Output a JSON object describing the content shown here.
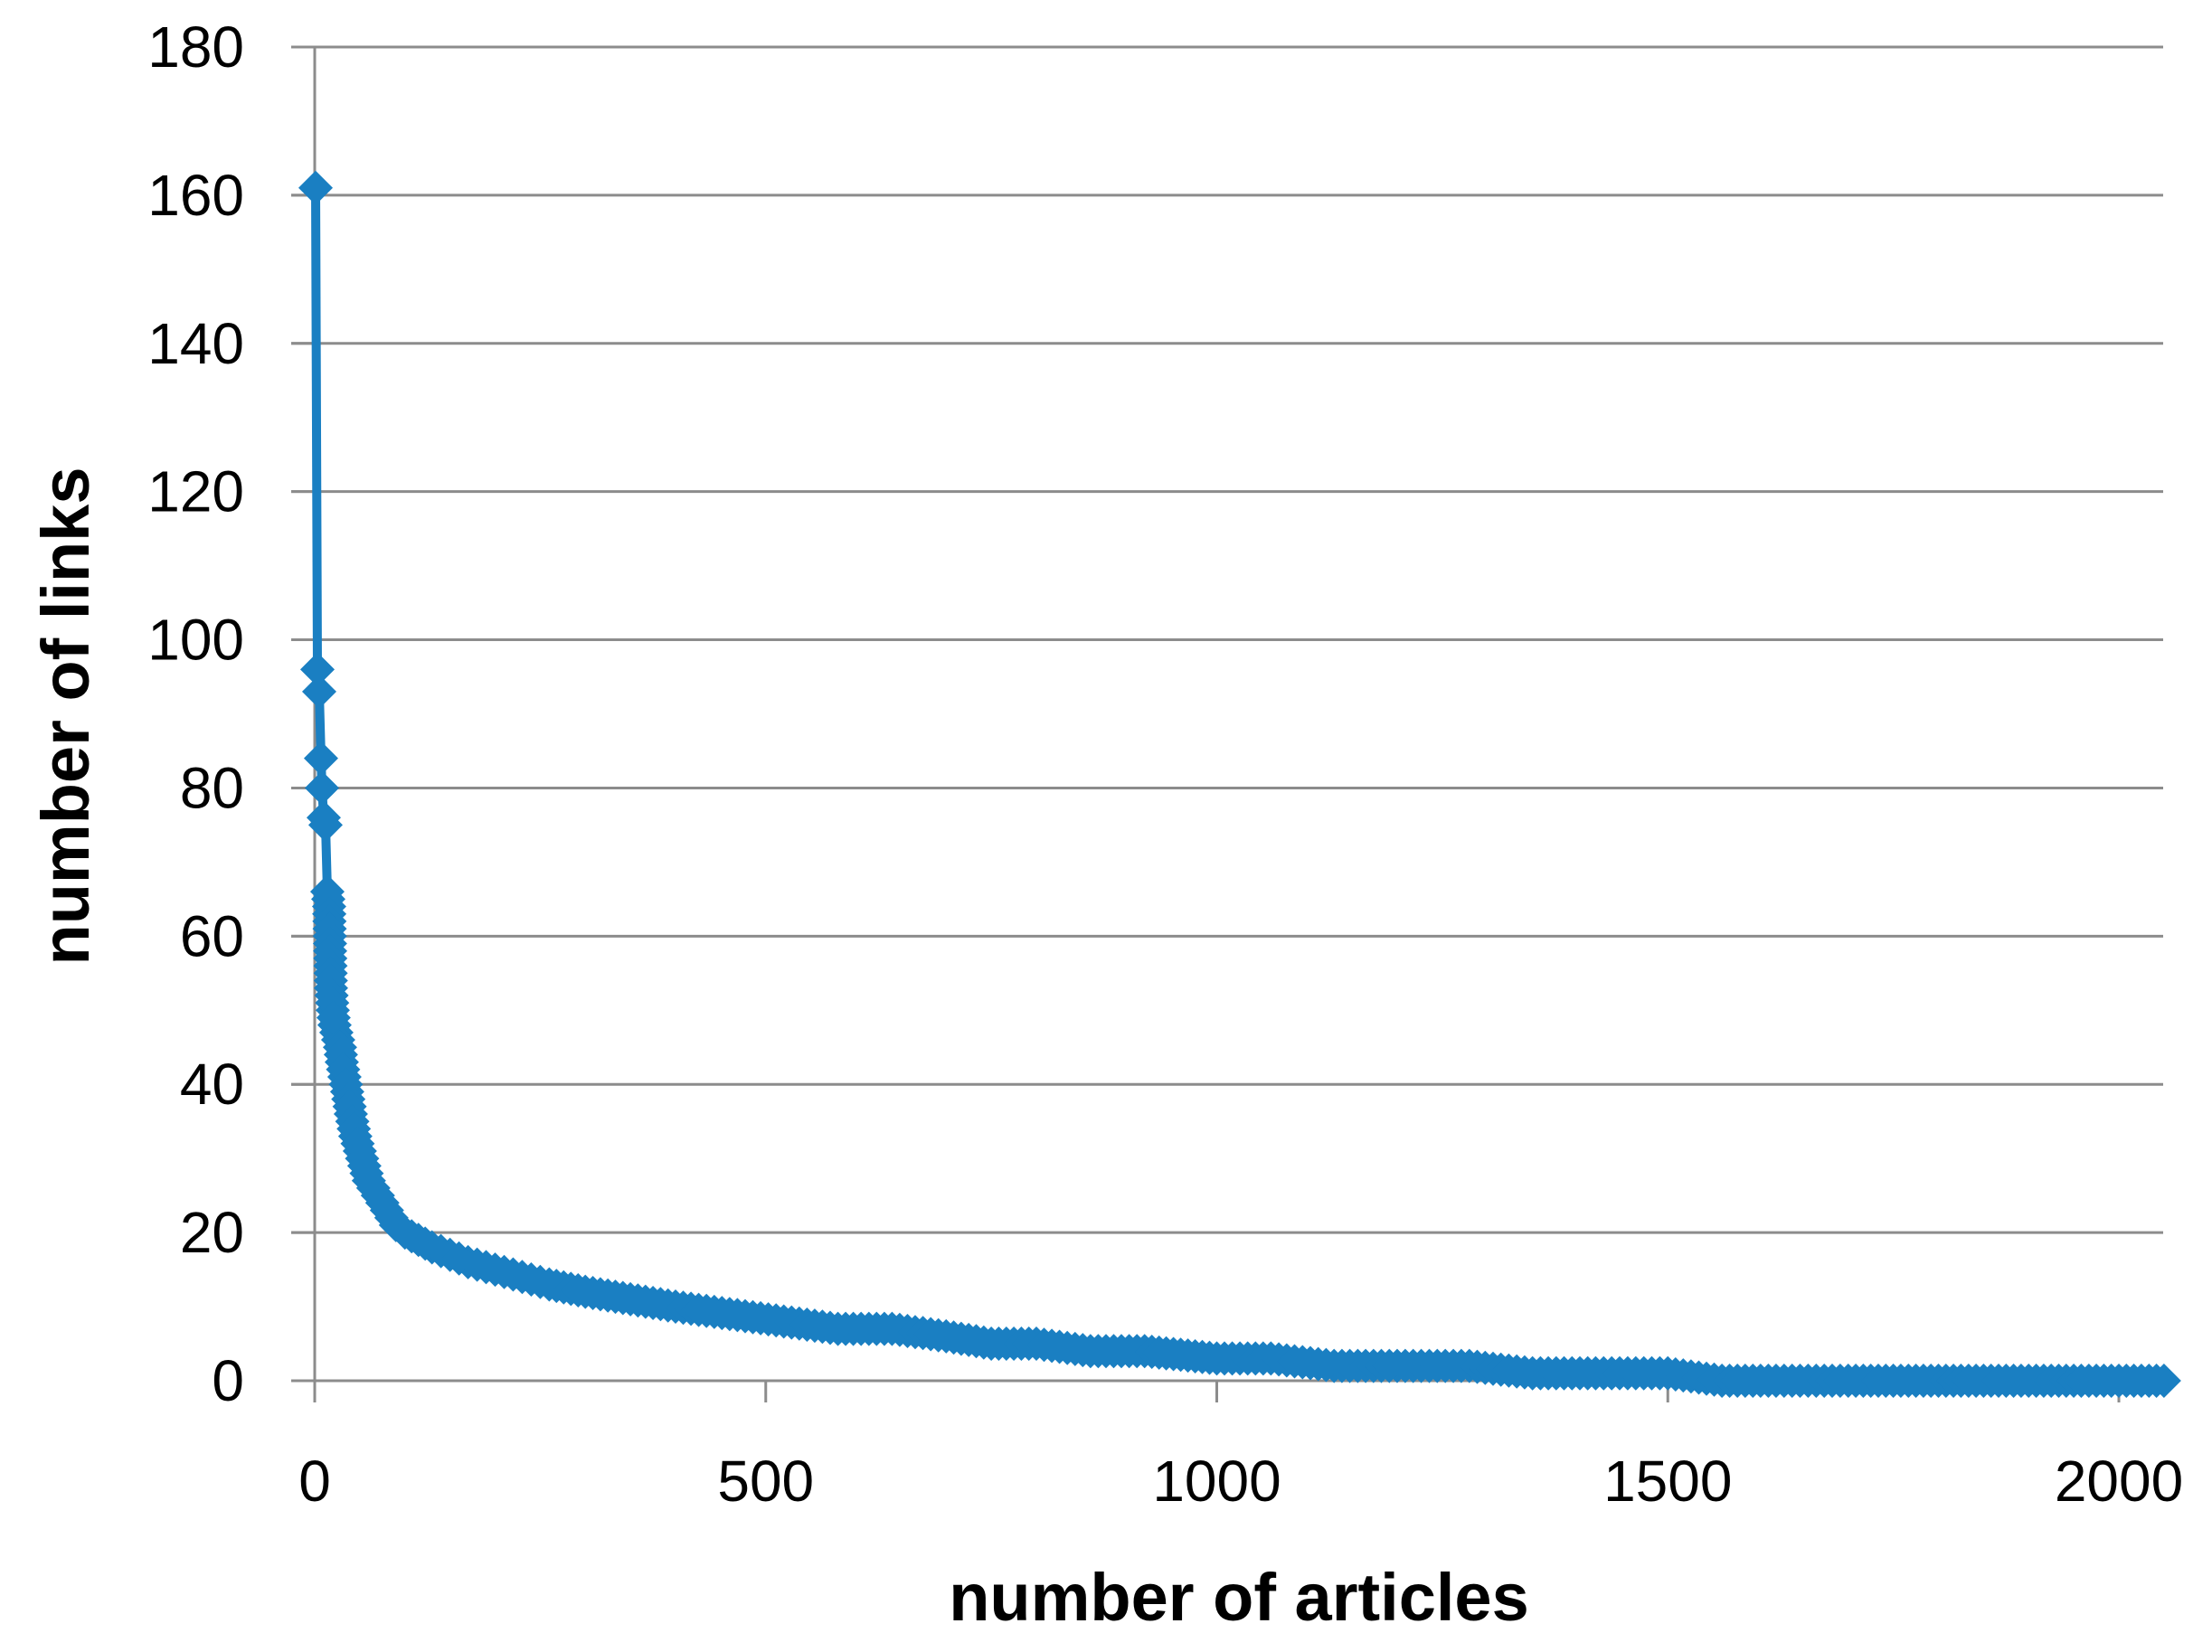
{
  "colors": {
    "series": "#1a7fc2",
    "grid": "#8c8c8c",
    "axis": "#8c8c8c",
    "background": "#ffffff"
  },
  "chart_data": {
    "type": "line",
    "title": "",
    "xlabel": "number of articles",
    "ylabel": "number of links",
    "xlim": [
      0,
      2050
    ],
    "ylim": [
      0,
      180
    ],
    "xticks": [
      0,
      500,
      1000,
      1500,
      2000
    ],
    "yticks": [
      0,
      20,
      40,
      60,
      80,
      100,
      120,
      140,
      160,
      180
    ],
    "grid": "horizontal",
    "legend": "none",
    "marker": "diamond",
    "series": [
      {
        "name": "",
        "x": [
          1,
          3,
          5,
          7,
          8,
          10,
          12,
          14,
          16,
          18,
          20,
          22,
          24,
          26,
          28,
          30,
          33,
          36,
          40,
          45,
          50,
          55,
          60,
          70,
          80,
          90,
          100,
          115,
          130,
          150,
          170,
          200,
          230,
          260,
          300,
          350,
          400,
          460,
          520,
          580,
          640,
          700,
          750,
          800,
          860,
          920,
          1000,
          1060,
          1130,
          1200,
          1280,
          1350,
          1420,
          1500,
          1560,
          1620,
          1700,
          1800,
          1900,
          2000,
          2050
        ],
        "y": [
          161,
          96,
          93,
          84,
          80,
          76,
          75,
          66,
          64,
          53,
          50,
          48,
          47,
          46,
          45,
          43,
          41,
          39,
          36,
          33,
          31,
          29,
          27,
          25,
          23,
          21,
          20,
          19,
          18,
          17,
          16,
          15,
          14,
          13,
          12,
          11,
          10,
          9,
          8,
          7,
          7,
          6,
          5,
          5,
          4,
          4,
          3,
          3,
          2,
          2,
          2,
          1,
          1,
          1,
          0,
          0,
          0,
          0,
          0,
          0,
          0
        ]
      }
    ]
  }
}
